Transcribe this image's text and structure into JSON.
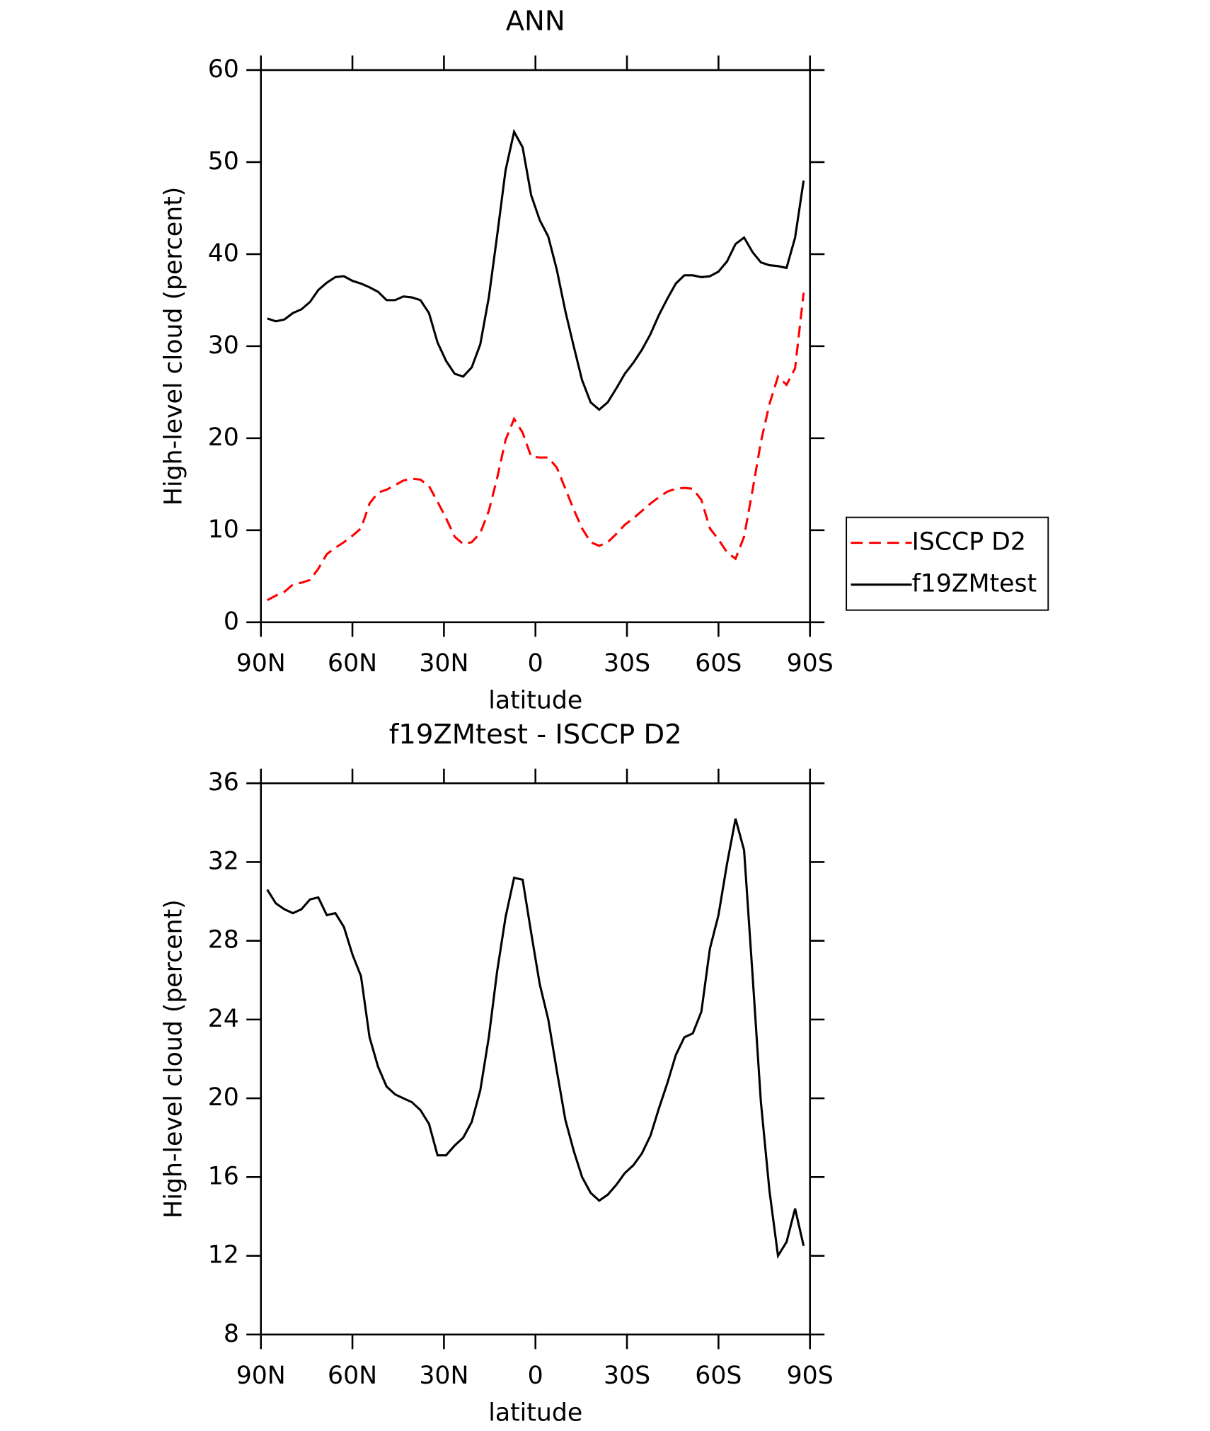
{
  "chart_data": [
    {
      "type": "line",
      "title": "ANN",
      "xlabel": "latitude",
      "ylabel": "High-level cloud (percent)",
      "x": [
        87.9,
        85.1,
        82.3,
        79.5,
        76.7,
        73.9,
        71.2,
        68.4,
        65.6,
        62.8,
        60.0,
        57.2,
        54.4,
        51.6,
        48.8,
        46.0,
        43.3,
        40.5,
        37.7,
        34.9,
        32.1,
        29.3,
        26.5,
        23.7,
        20.9,
        18.1,
        15.3,
        12.6,
        9.8,
        7.0,
        4.2,
        1.4,
        -1.4,
        -4.2,
        -7.0,
        -9.8,
        -12.6,
        -15.3,
        -18.1,
        -20.9,
        -23.7,
        -26.5,
        -29.3,
        -32.1,
        -34.9,
        -37.7,
        -40.5,
        -43.3,
        -46.0,
        -48.8,
        -51.6,
        -54.4,
        -57.2,
        -60.0,
        -62.8,
        -65.6,
        -68.4,
        -71.2,
        -73.9,
        -76.7,
        -79.5,
        -82.3,
        -85.1,
        -87.9
      ],
      "series": [
        {
          "name": "ISCCP D2",
          "color": "#ff0000",
          "dash": true,
          "values": [
            2.4,
            2.9,
            3.3,
            4.1,
            4.3,
            4.6,
            5.8,
            7.4,
            8.1,
            8.7,
            9.4,
            10.2,
            12.9,
            14.1,
            14.4,
            14.9,
            15.4,
            15.6,
            15.5,
            14.8,
            13.1,
            11.3,
            9.3,
            8.5,
            8.7,
            9.7,
            12.1,
            15.6,
            19.8,
            22.1,
            20.6,
            18.0,
            17.9,
            17.9,
            16.8,
            14.5,
            12.2,
            10.2,
            8.7,
            8.3,
            8.7,
            9.6,
            10.6,
            11.3,
            12.1,
            12.9,
            13.6,
            14.2,
            14.5,
            14.6,
            14.5,
            13.3,
            10.2,
            9.0,
            7.6,
            6.9,
            9.3,
            14.4,
            19.6,
            23.7,
            26.7,
            25.8,
            27.6,
            35.8
          ]
        },
        {
          "name": "f19ZMtest",
          "color": "#000000",
          "dash": false,
          "values": [
            33.0,
            32.7,
            32.9,
            33.6,
            34.0,
            34.8,
            36.1,
            36.9,
            37.5,
            37.6,
            37.1,
            36.8,
            36.4,
            35.9,
            35.0,
            35.0,
            35.4,
            35.3,
            35.0,
            33.6,
            30.4,
            28.4,
            27.0,
            26.7,
            27.7,
            30.2,
            35.3,
            41.9,
            49.1,
            53.3,
            51.6,
            46.4,
            43.7,
            41.9,
            38.3,
            33.8,
            29.9,
            26.3,
            23.9,
            23.1,
            23.9,
            25.4,
            27.0,
            28.2,
            29.6,
            31.3,
            33.4,
            35.2,
            36.8,
            37.7,
            37.7,
            37.5,
            37.6,
            38.1,
            39.2,
            41.1,
            41.8,
            40.2,
            39.1,
            38.8,
            38.7,
            38.5,
            41.8,
            48.0
          ]
        }
      ],
      "xlim": [
        90,
        -90
      ],
      "xticks": [
        {
          "value": 90,
          "label": "90N"
        },
        {
          "value": 60,
          "label": "60N"
        },
        {
          "value": 30,
          "label": "30N"
        },
        0,
        {
          "value": -30,
          "label": "30S"
        },
        {
          "value": -60,
          "label": "60S"
        },
        {
          "value": -90,
          "label": "90S"
        }
      ],
      "ylim": [
        0,
        60
      ],
      "yticks": [
        0,
        10,
        20,
        30,
        40,
        50,
        60
      ],
      "legend": "right"
    },
    {
      "type": "line",
      "title": "f19ZMtest - ISCCP D2",
      "xlabel": "latitude",
      "ylabel": "High-level cloud (percent)",
      "x": [
        87.9,
        85.1,
        82.3,
        79.5,
        76.7,
        73.9,
        71.2,
        68.4,
        65.6,
        62.8,
        60.0,
        57.2,
        54.4,
        51.6,
        48.8,
        46.0,
        43.3,
        40.5,
        37.7,
        34.9,
        32.1,
        29.3,
        26.5,
        23.7,
        20.9,
        18.1,
        15.3,
        12.6,
        9.8,
        7.0,
        4.2,
        1.4,
        -1.4,
        -4.2,
        -7.0,
        -9.8,
        -12.6,
        -15.3,
        -18.1,
        -20.9,
        -23.7,
        -26.5,
        -29.3,
        -32.1,
        -34.9,
        -37.7,
        -40.5,
        -43.3,
        -46.0,
        -48.8,
        -51.6,
        -54.4,
        -57.2,
        -60.0,
        -62.8,
        -65.6,
        -68.4,
        -71.2,
        -73.9,
        -76.7,
        -79.5,
        -82.3,
        -85.1,
        -87.9
      ],
      "color": "#000000",
      "values": [
        30.6,
        29.9,
        29.6,
        29.4,
        29.6,
        30.1,
        30.2,
        29.3,
        29.4,
        28.7,
        27.3,
        26.2,
        23.1,
        21.6,
        20.6,
        20.2,
        20.0,
        19.8,
        19.4,
        18.7,
        17.1,
        17.1,
        17.6,
        18.0,
        18.8,
        20.4,
        23.1,
        26.4,
        29.2,
        31.2,
        31.1,
        28.4,
        25.8,
        24.0,
        21.4,
        18.9,
        17.3,
        16.0,
        15.2,
        14.8,
        15.1,
        15.6,
        16.2,
        16.6,
        17.2,
        18.1,
        19.5,
        20.8,
        22.2,
        23.1,
        23.3,
        24.4,
        27.6,
        29.3,
        31.9,
        34.2,
        32.6,
        26.2,
        19.8,
        15.3,
        12.0,
        12.7,
        14.4,
        12.5
      ],
      "xlim": [
        90,
        -90
      ],
      "xticks": [
        {
          "value": 90,
          "label": "90N"
        },
        {
          "value": 60,
          "label": "60N"
        },
        {
          "value": 30,
          "label": "30N"
        },
        0,
        {
          "value": -30,
          "label": "30S"
        },
        {
          "value": -60,
          "label": "60S"
        },
        {
          "value": -90,
          "label": "90S"
        }
      ],
      "ylim": [
        8,
        36
      ],
      "yticks": [
        8,
        12,
        16,
        20,
        24,
        28,
        32,
        36
      ]
    }
  ]
}
